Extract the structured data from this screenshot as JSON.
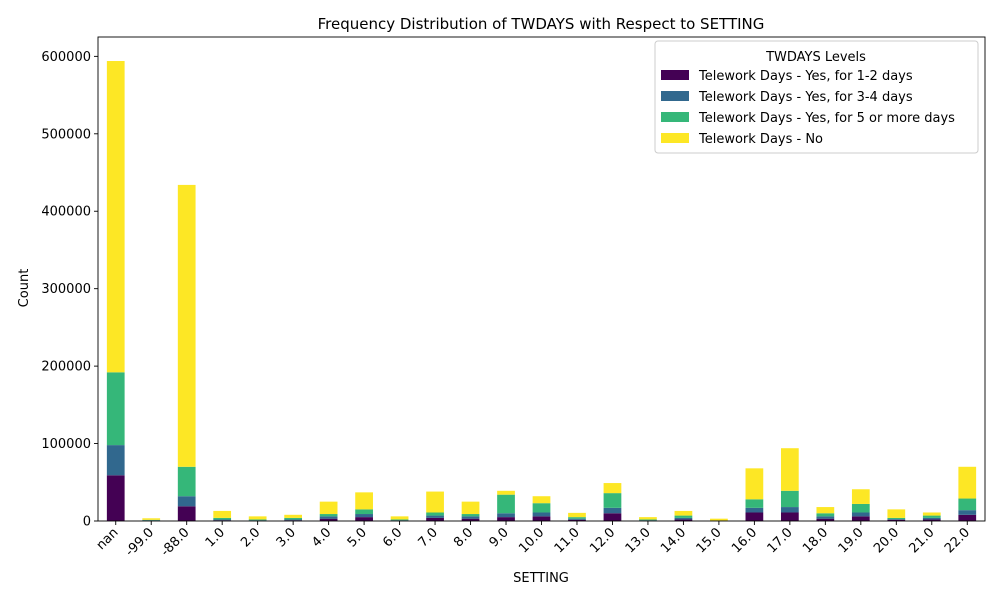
{
  "chart_data": {
    "type": "bar",
    "stacked": true,
    "title": "Frequency Distribution of TWDAYS with Respect to SETTING",
    "xlabel": "SETTING",
    "ylabel": "Count",
    "ylim": [
      0,
      625000
    ],
    "yticks": [
      0,
      100000,
      200000,
      300000,
      400000,
      500000,
      600000
    ],
    "grid": false,
    "legend_title": "TWDAYS Levels",
    "legend_position": "top-right",
    "categories": [
      "nan",
      "-99.0",
      "-88.0",
      "1.0",
      "2.0",
      "3.0",
      "4.0",
      "5.0",
      "6.0",
      "7.0",
      "8.0",
      "9.0",
      "10.0",
      "11.0",
      "12.0",
      "13.0",
      "14.0",
      "15.0",
      "16.0",
      "17.0",
      "18.0",
      "19.0",
      "20.0",
      "21.0",
      "22.0"
    ],
    "series": [
      {
        "name": "Telework Days - Yes, for 1-2 days",
        "color": "#440154",
        "values": [
          59000,
          500,
          19000,
          1000,
          500,
          1000,
          3000,
          5000,
          500,
          4000,
          3000,
          5000,
          6000,
          1500,
          10000,
          500,
          2000,
          200,
          11000,
          11000,
          3000,
          6000,
          1500,
          2000,
          8000
        ]
      },
      {
        "name": "Telework Days - Yes, for 3-4 days",
        "color": "#31688e",
        "values": [
          39000,
          500,
          13000,
          1000,
          500,
          1000,
          3000,
          4000,
          500,
          3000,
          3000,
          5000,
          5000,
          1500,
          7000,
          500,
          2000,
          200,
          6000,
          7000,
          3000,
          5000,
          1000,
          2000,
          6000
        ]
      },
      {
        "name": "Telework Days - Yes, for 5 or more days",
        "color": "#35b779",
        "values": [
          94000,
          500,
          38000,
          2000,
          1000,
          2000,
          3000,
          6000,
          1000,
          4000,
          3000,
          24000,
          12000,
          2000,
          19000,
          1000,
          3000,
          300,
          11000,
          21000,
          4000,
          11000,
          1500,
          3000,
          15000
        ]
      },
      {
        "name": "Telework Days - No",
        "color": "#fde725",
        "values": [
          402000,
          2000,
          364000,
          9000,
          4000,
          4000,
          16000,
          22000,
          4000,
          27000,
          16000,
          5000,
          9000,
          5500,
          13000,
          3000,
          6000,
          2300,
          40000,
          55000,
          8000,
          19000,
          11000,
          4000,
          41000
        ]
      }
    ]
  }
}
